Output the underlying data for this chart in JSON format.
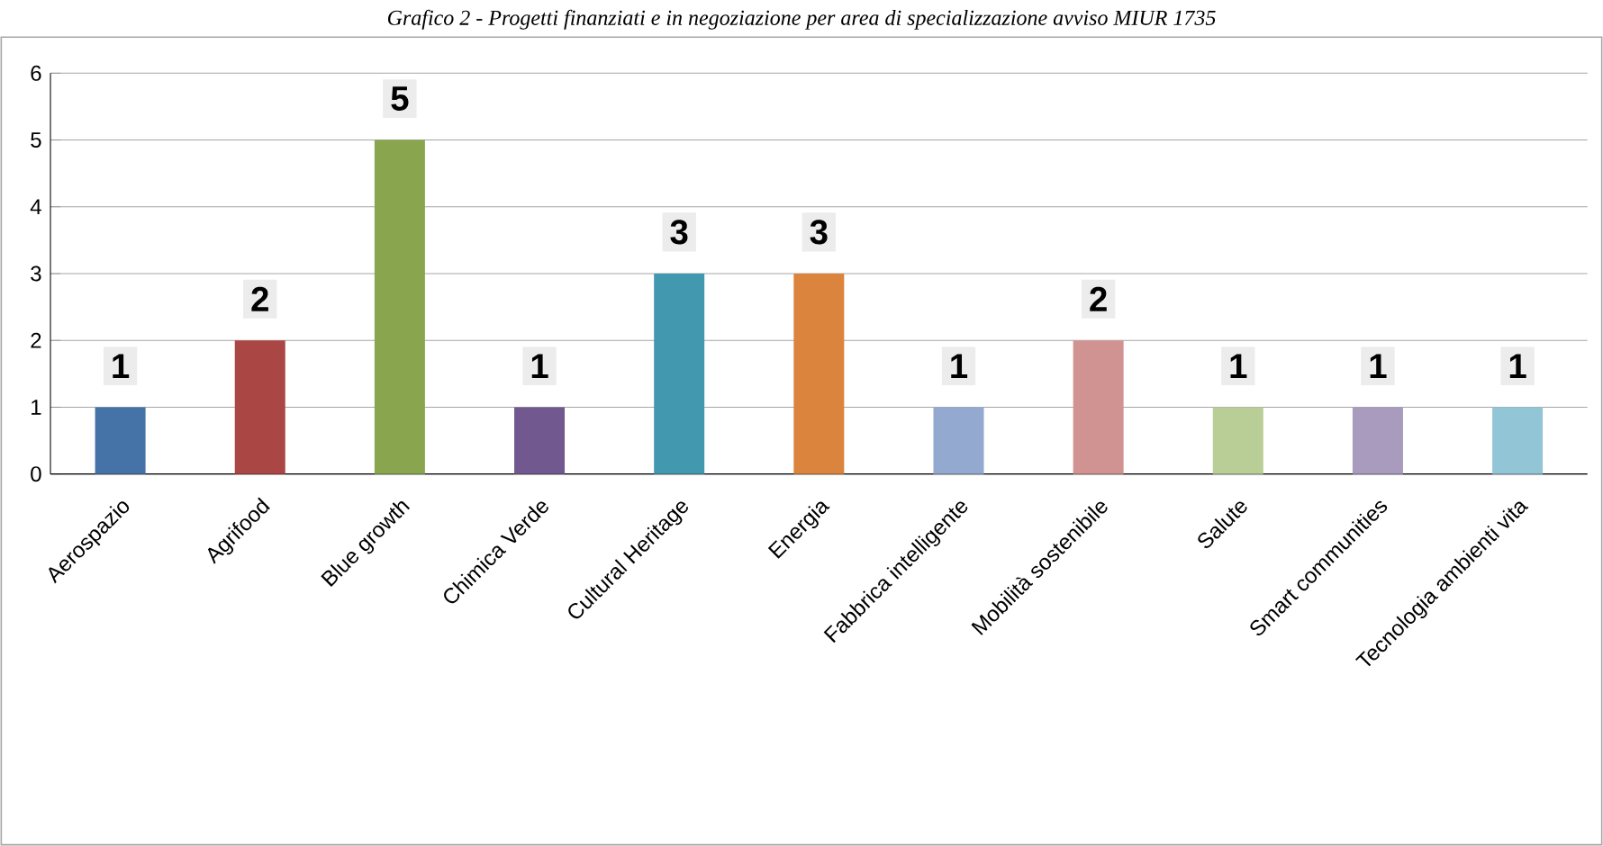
{
  "chart_data": {
    "type": "bar",
    "title": "Grafico 2 - Progetti finanziati e in negoziazione per area di specializzazione avviso MIUR 1735",
    "categories": [
      "Aerospazio",
      "Agrifood",
      "Blue growth",
      "Chimica Verde",
      "Cultural Heritage",
      "Energia",
      "Fabbrica intelligente",
      "Mobilità sostenibile",
      "Salute",
      "Smart communities",
      "Tecnologia ambienti vita"
    ],
    "values": [
      1,
      2,
      5,
      1,
      3,
      3,
      1,
      2,
      1,
      1,
      1
    ],
    "colors": [
      "#4572a7",
      "#aa4643",
      "#89a54e",
      "#71588f",
      "#4198af",
      "#db843d",
      "#93a9cf",
      "#d19392",
      "#b9cd96",
      "#a99bbd",
      "#92c5d6"
    ],
    "ylim": [
      0,
      6
    ],
    "yticks": [
      0,
      1,
      2,
      3,
      4,
      5,
      6
    ],
    "grid": "y",
    "data_labels": true
  }
}
